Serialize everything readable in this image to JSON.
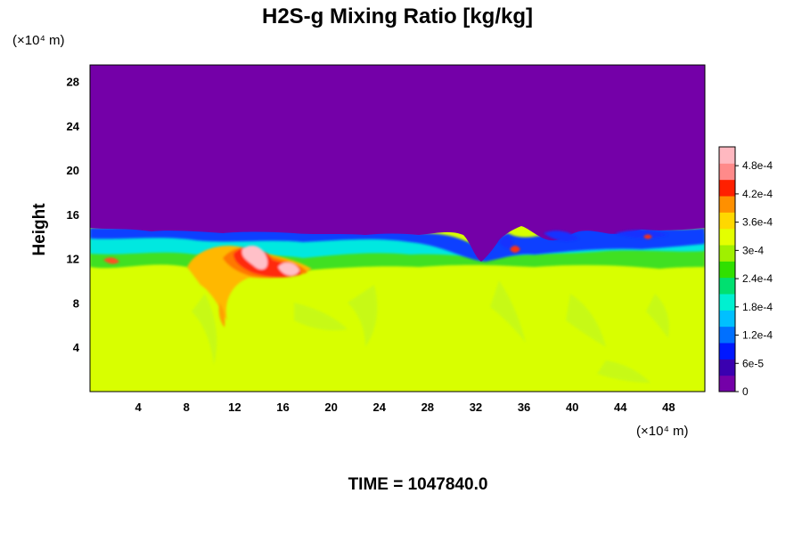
{
  "chart_data": {
    "type": "heatmap",
    "title": "H2S-g Mixing Ratio [kg/kg]",
    "ylabel": "Height",
    "y_unit_label": "(×10⁴ m)",
    "x_unit_label": "(×10⁴ m)",
    "x_ticks": [
      4,
      8,
      12,
      16,
      20,
      24,
      28,
      32,
      36,
      40,
      44,
      48
    ],
    "y_ticks": [
      4,
      8,
      12,
      16,
      20,
      24,
      28
    ],
    "xlim": [
      0,
      51
    ],
    "ylim": [
      0,
      29.5
    ],
    "colorbar": {
      "ticks": [
        "4.8e-4",
        "4.2e-4",
        "3.6e-4",
        "3e-4",
        "2.4e-4",
        "1.8e-4",
        "1.2e-4",
        "6e-5",
        "0"
      ],
      "tick_values": [
        0.00048,
        0.00042,
        0.00036,
        0.0003,
        0.00024,
        0.00018,
        0.00012,
        6e-05,
        0
      ],
      "range": [
        0,
        0.00052
      ],
      "colors": [
        "#7400a8",
        "#3a00b0",
        "#0018ff",
        "#0070ff",
        "#00c0ff",
        "#00f0d0",
        "#00e070",
        "#30e000",
        "#a0f000",
        "#e4ff00",
        "#ffd800",
        "#ff9000",
        "#ff2000",
        "#ff8a8a",
        "#ffb8c0"
      ]
    },
    "regions": {
      "upper_value": 0,
      "lower_value": 0.00037,
      "interface_height": 13.5
    },
    "grid": false,
    "legend": "colorbar-right"
  },
  "footer": {
    "time_text": "TIME = 1047840.0"
  }
}
